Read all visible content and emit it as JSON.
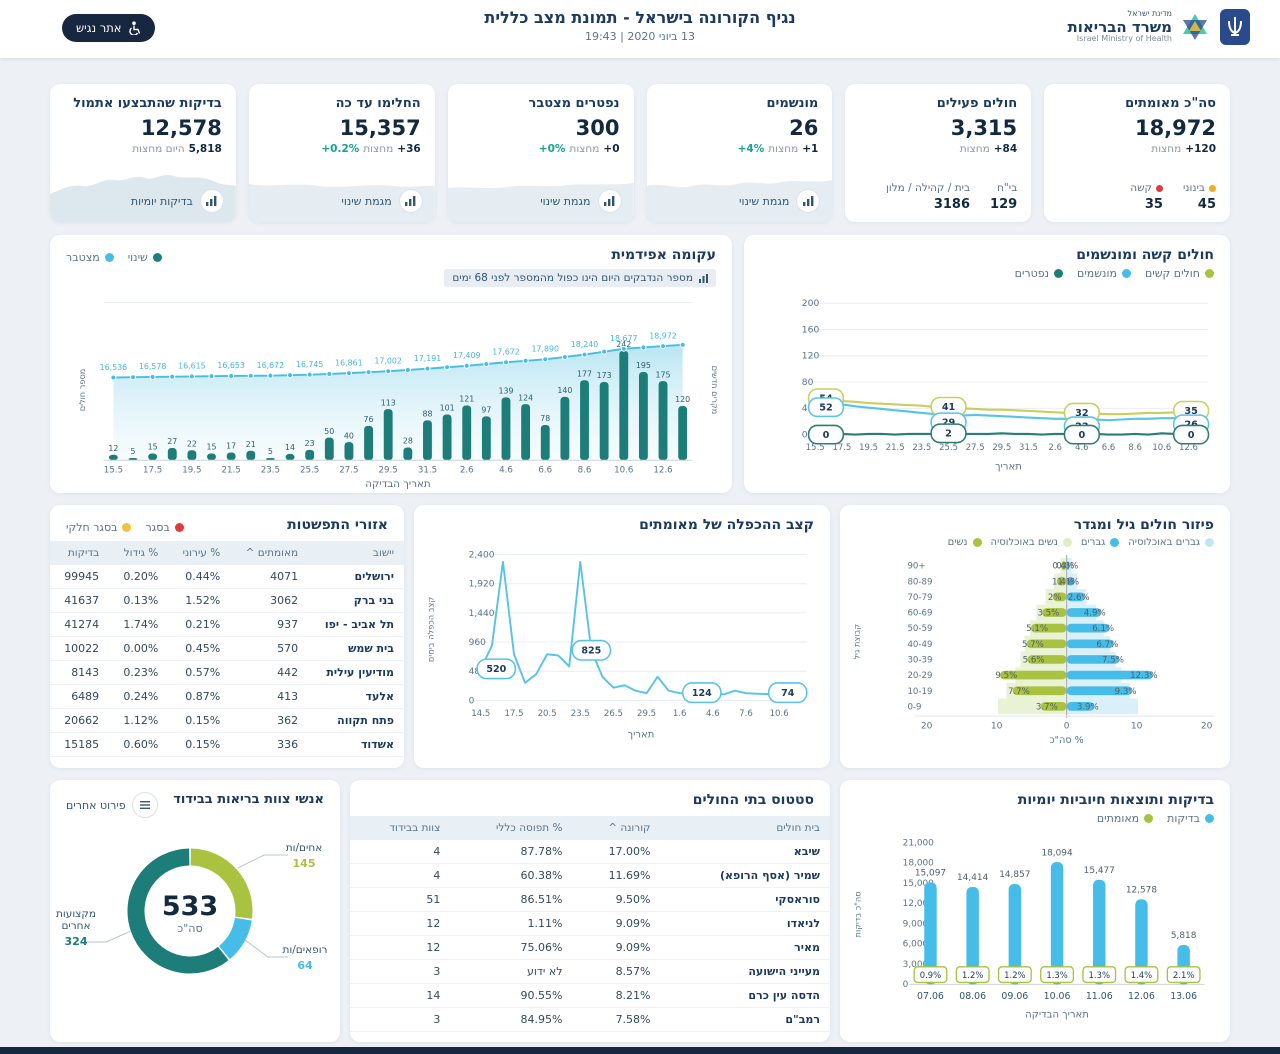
{
  "header": {
    "state": "מדינת ישראל",
    "ministry": "משרד הבריאות",
    "ministry_en": "Israel Ministry of Health",
    "title": "נגיף הקורונה בישראל - תמונת מצב כללית",
    "datetime": "13 ביוני 2020 | 19:43",
    "accessibility": "אתר נגיש"
  },
  "colors": {
    "navy": "#1b3a5d",
    "teal_dark": "#1d7d78",
    "cyan": "#45bde8",
    "green": "#a9c23f",
    "red": "#e03a3a",
    "orange": "#f0ab2e",
    "yellow": "#f0c23e",
    "teal_text": "#18a094"
  },
  "cards": [
    {
      "title": "סה\"כ מאומתים",
      "value": "18,972",
      "change": {
        "value": "+120",
        "suffix": "מחצות",
        "pct": null
      },
      "stats": [
        {
          "label": "בינוני",
          "dot": "#f0ab2e",
          "value": "45"
        },
        {
          "label": "קשה",
          "dot": "#e03a3a",
          "value": "35"
        }
      ]
    },
    {
      "title": "חולים פעילים",
      "value": "3,315",
      "change": {
        "value": "+84",
        "suffix": "מחצות",
        "pct": null
      },
      "stats": [
        {
          "label": "בי\"ח",
          "dot": null,
          "value": "129"
        },
        {
          "label": "בית / קהילה / מלון",
          "dot": null,
          "value": "3186"
        }
      ]
    },
    {
      "title": "מונשמים",
      "value": "26",
      "change": {
        "value": "+1",
        "suffix": "מחצות",
        "pct": "+4%"
      },
      "footer": {
        "label": "מגמת שינוי"
      }
    },
    {
      "title": "נפטרים מצטבר",
      "value": "300",
      "change": {
        "value": "+0",
        "suffix": "מחצות",
        "pct": "+0%"
      },
      "footer": {
        "label": "מגמת שינוי"
      }
    },
    {
      "title": "החלימו עד כה",
      "value": "15,357",
      "change": {
        "value": "+36",
        "suffix": "מחצות",
        "pct": "+0.2%"
      },
      "footer": {
        "label": "מגמת שינוי"
      }
    },
    {
      "title": "בדיקות שהתבצעו אתמול",
      "value": "12,578",
      "change": {
        "value": "5,818",
        "suffix": "היום מחצות",
        "pct": null
      },
      "footer": {
        "label": "בדיקות יומיות"
      }
    }
  ],
  "panels": {
    "epidemic": {
      "title": "עקומה אפידמית",
      "note": "מספר הנדבקים היום הינו כפול מהמספר לפני 68 ימים",
      "legend": [
        {
          "label": "שינוי",
          "color": "#1d7d78"
        },
        {
          "label": "מצטבר",
          "color": "#45bde8"
        }
      ]
    },
    "severe": {
      "title": "חולים קשה ומונשמים",
      "legend": [
        {
          "label": "חולים קשים",
          "color": "#a9c23f"
        },
        {
          "label": "מונשמים",
          "color": "#45bde8"
        },
        {
          "label": "נפטרים",
          "color": "#1d7d78"
        }
      ]
    },
    "pyramid": {
      "title": "פיזור חולים גיל ומגדר",
      "legend": [
        {
          "label": "גברים באוכלוסיה",
          "color": "#bfe6f7"
        },
        {
          "label": "גברים",
          "color": "#45bde8"
        },
        {
          "label": "נשים באוכלוסיה",
          "color": "#dfedc0"
        },
        {
          "label": "נשים",
          "color": "#a9c23f"
        }
      ]
    },
    "doubling": {
      "title": "קצב ההכפלה של מאומתים"
    },
    "spread": {
      "title": "אזורי התפשטות",
      "legend": [
        {
          "label": "בסגר",
          "color": "#e03a3a"
        },
        {
          "label": "בסגר חלקי",
          "color": "#f0c23e"
        }
      ],
      "table": {
        "headers": [
          "יישוב",
          "מאומתים ^",
          "% עירוני",
          "% גידול",
          "בדיקות"
        ],
        "rows": [
          [
            "ירושלים",
            "4071",
            "0.44%",
            "0.20%",
            "99945"
          ],
          [
            "בני ברק",
            "3062",
            "1.52%",
            "0.13%",
            "41637"
          ],
          [
            "תל אביב - יפו",
            "937",
            "0.21%",
            "1.74%",
            "41274"
          ],
          [
            "בית שמש",
            "570",
            "0.45%",
            "0.00%",
            "10022"
          ],
          [
            "מודיעין עילית",
            "442",
            "0.57%",
            "0.23%",
            "8143"
          ],
          [
            "אלעד",
            "413",
            "0.87%",
            "0.24%",
            "6489"
          ],
          [
            "פתח תקווה",
            "362",
            "0.15%",
            "1.12%",
            "20662"
          ],
          [
            "אשדוד",
            "336",
            "0.15%",
            "0.60%",
            "15185"
          ]
        ]
      }
    },
    "tests": {
      "title": "בדיקות ותוצאות חיוביות יומיות",
      "legend": [
        {
          "label": "בדיקות",
          "color": "#45bde8"
        },
        {
          "label": "מאומתים",
          "color": "#a9c23f"
        }
      ]
    },
    "hospitals": {
      "title": "סטטוס בתי החולים",
      "table": {
        "headers": [
          "בית חולים",
          "קורונה ^",
          "% תפוסה כללי",
          "צוות בבידוד"
        ],
        "rows": [
          [
            "שיבא",
            "17.00%",
            "87.78%",
            "4"
          ],
          [
            "שמיר (אסף הרופא)",
            "11.69%",
            "60.38%",
            "4"
          ],
          [
            "סוראסקי",
            "9.50%",
            "86.51%",
            "51"
          ],
          [
            "לניאדו",
            "9.09%",
            "1.11%",
            "12"
          ],
          [
            "מאיר",
            "9.09%",
            "75.06%",
            "12"
          ],
          [
            "מעייני הישועה",
            "8.57%",
            "לא ידוע",
            "3"
          ],
          [
            "הדסה עין כרם",
            "8.21%",
            "90.55%",
            "14"
          ],
          [
            "רמב\"ם",
            "7.58%",
            "84.95%",
            "3"
          ]
        ]
      }
    },
    "staff": {
      "title": "אנשי צוות בריאות בבידוד",
      "button": "פירוט אחרים",
      "total": "533",
      "total_label": "סה\"כ"
    }
  },
  "chart_data": [
    {
      "id": "epidemic",
      "type": "combo-bar-line",
      "categories": [
        "15.5",
        "16.5",
        "17.5",
        "18.5",
        "19.5",
        "20.5",
        "21.5",
        "22.5",
        "23.5",
        "24.5",
        "25.5",
        "26.5",
        "27.5",
        "28.5",
        "29.5",
        "30.5",
        "31.5",
        "1.6",
        "2.6",
        "3.6",
        "4.6",
        "5.6",
        "6.6",
        "7.6",
        "8.6",
        "9.6",
        "10.6",
        "11.6",
        "12.6",
        "13.6"
      ],
      "bars": {
        "name": "שינוי",
        "color": "#1d7d78",
        "values": [
          12,
          5,
          15,
          27,
          22,
          15,
          17,
          21,
          5,
          14,
          23,
          50,
          40,
          76,
          113,
          28,
          88,
          101,
          121,
          97,
          139,
          124,
          78,
          140,
          177,
          173,
          242,
          195,
          175,
          120
        ]
      },
      "line": {
        "name": "מצטבר",
        "color": "#45bde8",
        "values": [
          16536,
          16557,
          16578,
          16597,
          16615,
          16634,
          16653,
          16663,
          16672,
          16709,
          16745,
          16803,
          16861,
          16932,
          17002,
          17097,
          17191,
          17300,
          17409,
          17541,
          17672,
          17781,
          17890,
          18065,
          18240,
          18459,
          18677,
          18775,
          18875,
          18972
        ],
        "labels": [
          "16,536",
          "16,578",
          "16,615",
          "16,653",
          "16,672",
          "16,745",
          "16,861",
          "17,002",
          "17,191",
          "17,409",
          "17,672",
          "17,890",
          "18,240",
          "18,677",
          "18,972"
        ]
      },
      "xlabel": "תאריך הבדיקה",
      "ylabel_left": "מספר חולים",
      "ylabel_right": "מקרים חדשים"
    },
    {
      "id": "severe",
      "type": "multi-line",
      "categories": [
        "15.5",
        "16.5",
        "17.5",
        "18.5",
        "19.5",
        "20.5",
        "21.5",
        "22.5",
        "23.5",
        "24.5",
        "25.5",
        "26.5",
        "27.5",
        "28.5",
        "29.5",
        "30.5",
        "31.5",
        "1.6",
        "2.6",
        "3.6",
        "4.6",
        "5.6",
        "6.6",
        "7.6",
        "8.6",
        "9.6",
        "10.6",
        "11.6",
        "12.6",
        "13.6"
      ],
      "series": [
        {
          "name": "חולים קשים",
          "color": "#c9cf5d",
          "values": [
            54,
            53,
            51,
            50,
            48,
            47,
            46,
            45,
            44,
            42,
            41,
            40,
            39,
            38,
            38,
            37,
            36,
            35,
            34,
            33,
            32,
            32,
            31,
            31,
            32,
            33,
            33,
            34,
            35,
            35
          ]
        },
        {
          "name": "מונשמים",
          "color": "#57c3e9",
          "values": [
            52,
            49,
            46,
            43,
            41,
            39,
            37,
            35,
            33,
            31,
            29,
            29,
            30,
            29,
            28,
            27,
            26,
            25,
            24,
            24,
            23,
            23,
            22,
            23,
            24,
            24,
            25,
            25,
            26,
            26
          ]
        },
        {
          "name": "נפטרים",
          "color": "#2a7d74",
          "values": [
            0,
            0,
            1,
            0,
            1,
            1,
            0,
            1,
            1,
            1,
            2,
            1,
            1,
            1,
            2,
            1,
            1,
            0,
            1,
            1,
            0,
            1,
            0,
            0,
            1,
            0,
            2,
            1,
            0,
            0
          ]
        }
      ],
      "markers": [
        {
          "index": 0,
          "values": [
            54,
            52,
            0
          ]
        },
        {
          "index": 10,
          "values": [
            41,
            29,
            2
          ]
        },
        {
          "index": 20,
          "values": [
            32,
            23,
            0
          ]
        },
        {
          "index": 29,
          "values": [
            35,
            26,
            0
          ]
        }
      ],
      "yticks": [
        200,
        160,
        120,
        80,
        40,
        0
      ],
      "ylim": [
        0,
        200
      ],
      "xlabel": "תאריך"
    },
    {
      "id": "pyramid",
      "type": "pyramid",
      "age_groups": [
        "+90",
        "80-89",
        "70-79",
        "60-69",
        "50-59",
        "40-49",
        "30-39",
        "20-29",
        "10-19",
        "0-9"
      ],
      "women": [
        0.8,
        1.4,
        2,
        3.5,
        5.1,
        5.7,
        5.6,
        9.5,
        7.7,
        3.7
      ],
      "men": [
        0.4,
        1.1,
        2.6,
        4.9,
        6.1,
        6.7,
        7.5,
        12.3,
        9.3,
        3.9
      ],
      "women_labels": [
        "0.8%",
        "1.4%",
        "2%",
        "3.5%",
        "5.1%",
        "5.7%",
        "5.6%",
        "9.5%",
        "7.7%",
        "3.7%"
      ],
      "men_labels": [
        "0.4%",
        "1.1%",
        "2.6%",
        "4.9%",
        "6.1%",
        "6.7%",
        "7.5%",
        "12.3%",
        "9.3%",
        "3.9%"
      ],
      "women_pop": [
        0.9,
        1.8,
        3.0,
        4.3,
        5.2,
        6.0,
        6.6,
        7.3,
        8.6,
        9.8
      ],
      "men_pop": [
        0.7,
        1.5,
        2.8,
        4.2,
        5.3,
        6.2,
        7.0,
        7.8,
        9.0,
        10.2
      ],
      "xticks": [
        "20",
        "10",
        "0",
        "10",
        "20"
      ],
      "xlabel": "% סה\"כ",
      "ylabel": "קבוצת גיל"
    },
    {
      "id": "doubling",
      "type": "line",
      "categories": [
        "14.5",
        "15.5",
        "16.5",
        "17.5",
        "18.5",
        "19.5",
        "20.5",
        "21.5",
        "22.5",
        "23.5",
        "24.5",
        "25.5",
        "26.5",
        "27.5",
        "28.5",
        "29.5",
        "30.5",
        "31.5",
        "1.6",
        "2.6",
        "3.6",
        "4.6",
        "5.6",
        "6.6",
        "7.6",
        "8.6",
        "9.6",
        "10.6",
        "11.6",
        "12.6"
      ],
      "values": [
        520,
        900,
        2280,
        760,
        290,
        430,
        760,
        740,
        560,
        2280,
        825,
        390,
        210,
        250,
        160,
        120,
        390,
        160,
        120,
        110,
        124,
        110,
        100,
        160,
        120,
        110,
        105,
        100,
        90,
        74
      ],
      "labels": [
        {
          "index": 0,
          "text": "520"
        },
        {
          "index": 10,
          "text": "825"
        },
        {
          "index": 20,
          "text": "124"
        },
        {
          "index": 29,
          "text": "74"
        }
      ],
      "yticks": [
        "0",
        "480",
        "960",
        "1,440",
        "1,920",
        "2,400"
      ],
      "ylim": [
        0,
        2400
      ],
      "xtick_every": 3,
      "xlabel": "תאריך",
      "ylabel": "קצב הכפלה בימים",
      "color": "#57c3e9"
    },
    {
      "id": "tests",
      "type": "bar",
      "categories": [
        "07.06",
        "08.06",
        "09.06",
        "10.06",
        "11.06",
        "12.06",
        "13.06"
      ],
      "values": [
        15097,
        14414,
        14857,
        18094,
        15477,
        12578,
        5818
      ],
      "value_labels": [
        "15,097",
        "14,414",
        "14,857",
        "18,094",
        "15,477",
        "12,578",
        "5,818"
      ],
      "pct_labels": [
        "0.9%",
        "1.2%",
        "1.2%",
        "1.3%",
        "1.3%",
        "1.4%",
        "2.1%"
      ],
      "yticks": [
        "0",
        "3,000",
        "6,000",
        "9,000",
        "12,000",
        "15,000",
        "18,000",
        "21,000"
      ],
      "ylim": [
        0,
        21000
      ],
      "xlabel": "תאריך הבדיקה",
      "ylabel": "סה\"כ בדיקות",
      "bar_color": "#45bde8",
      "pct_color": "#a9c23f"
    },
    {
      "id": "staff-donut",
      "type": "donut",
      "total": 533,
      "total_label": "סה\"כ",
      "segments": [
        {
          "label": "אחים/ות",
          "value": 145,
          "color": "#a9c23f"
        },
        {
          "label": "רופאים/ות",
          "value": 64,
          "color": "#45bde8"
        },
        {
          "label": "מקצועות אחרים",
          "value": 324,
          "color": "#1d7d78"
        }
      ]
    }
  ]
}
